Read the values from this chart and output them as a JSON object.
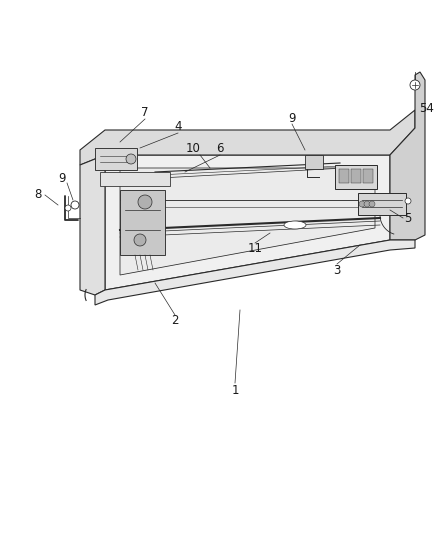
{
  "background_color": "#ffffff",
  "line_color": "#2a2a2a",
  "label_color": "#1a1a1a",
  "label_fontsize": 8.5,
  "fig_width": 4.38,
  "fig_height": 5.33,
  "dpi": 100
}
